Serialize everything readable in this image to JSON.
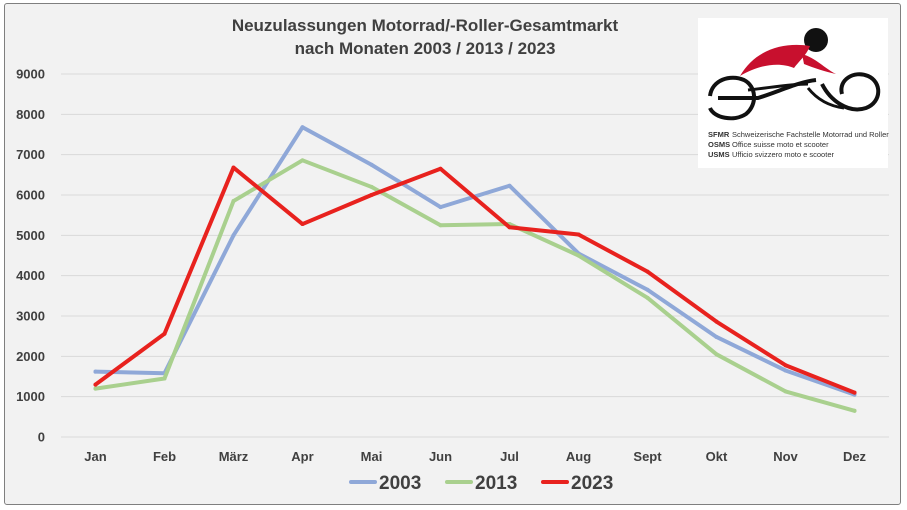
{
  "chart_data": {
    "type": "line",
    "title": "Neuzulassungen Motorrad/-Roller-Gesamtmarkt nach Monaten 2003 / 2013 / 2023",
    "title_lines": [
      "Neuzulassungen Motorrad/-Roller-Gesamtmarkt",
      "nach Monaten 2003 / 2013 / 2023"
    ],
    "categories": [
      "Jan",
      "Feb",
      "März",
      "Apr",
      "Mai",
      "Jun",
      "Jul",
      "Aug",
      "Sept",
      "Okt",
      "Nov",
      "Dez"
    ],
    "ylim": [
      0,
      9000
    ],
    "yticks": [
      0,
      1000,
      2000,
      3000,
      4000,
      5000,
      6000,
      7000,
      8000,
      9000
    ],
    "grid": true,
    "legend_position": "bottom",
    "series": [
      {
        "name": "2003",
        "color": "#8fa8d8",
        "values": [
          1620,
          1580,
          5000,
          7680,
          6750,
          5700,
          6230,
          4550,
          3650,
          2480,
          1650,
          1050
        ]
      },
      {
        "name": "2013",
        "color": "#a9d08e",
        "values": [
          1200,
          1450,
          5850,
          6860,
          6200,
          5250,
          5280,
          4500,
          3450,
          2050,
          1130,
          650
        ]
      },
      {
        "name": "2023",
        "color": "#e8221e",
        "values": [
          1300,
          2560,
          6680,
          5280,
          6000,
          6650,
          5200,
          5020,
          4100,
          2860,
          1780,
          1100
        ]
      }
    ]
  },
  "logo": {
    "lines": [
      {
        "abbr": "SFMR",
        "text": "Schweizerische Fachstelle Motorrad und Roller"
      },
      {
        "abbr": "OSMS",
        "text": "Office suisse moto et scooter"
      },
      {
        "abbr": "USMS",
        "text": "Ufficio svizzero moto e scooter"
      }
    ]
  }
}
